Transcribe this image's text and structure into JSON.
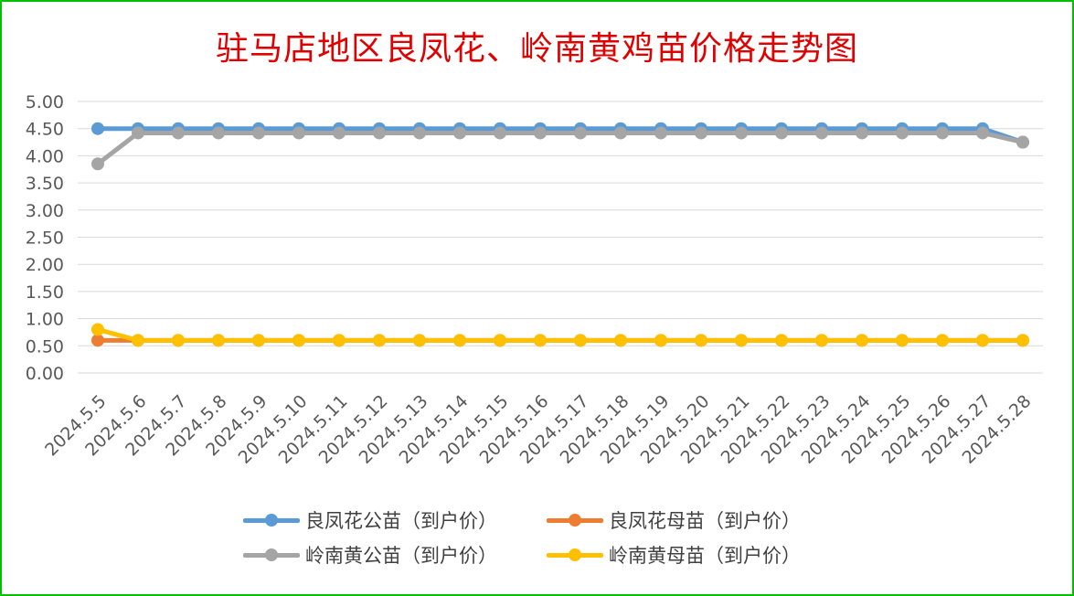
{
  "chart_data": {
    "type": "line",
    "title": "驻马店地区良凤花、岭南黄鸡苗价格走势图",
    "categories": [
      "2024.5.5",
      "2024.5.6",
      "2024.5.7",
      "2024.5.8",
      "2024.5.9",
      "2024.5.10",
      "2024.5.11",
      "2024.5.12",
      "2024.5.13",
      "2024.5.14",
      "2024.5.15",
      "2024.5.16",
      "2024.5.17",
      "2024.5.18",
      "2024.5.19",
      "2024.5.20",
      "2024.5.21",
      "2024.5.22",
      "2024.5.23",
      "2024.5.24",
      "2024.5.25",
      "2024.5.26",
      "2024.5.27",
      "2024.5.28"
    ],
    "ylim": [
      0,
      5
    ],
    "yticks": [
      "0.00",
      "0.50",
      "1.00",
      "1.50",
      "2.00",
      "2.50",
      "3.00",
      "3.50",
      "4.00",
      "4.50",
      "5.00"
    ],
    "grid": true,
    "legend_position": "bottom",
    "series": [
      {
        "name": "良凤花公苗（到户价）",
        "color": "#5b9bd5",
        "values": [
          4.5,
          4.5,
          4.5,
          4.5,
          4.5,
          4.5,
          4.5,
          4.5,
          4.5,
          4.5,
          4.5,
          4.5,
          4.5,
          4.5,
          4.5,
          4.5,
          4.5,
          4.5,
          4.5,
          4.5,
          4.5,
          4.5,
          4.5,
          4.25
        ]
      },
      {
        "name": "良凤花母苗（到户价）",
        "color": "#ed7d31",
        "values": [
          0.6,
          0.6,
          0.6,
          0.6,
          0.6,
          0.6,
          0.6,
          0.6,
          0.6,
          0.6,
          0.6,
          0.6,
          0.6,
          0.6,
          0.6,
          0.6,
          0.6,
          0.6,
          0.6,
          0.6,
          0.6,
          0.6,
          0.6,
          0.6
        ]
      },
      {
        "name": "岭南黄公苗（到户价）",
        "color": "#a5a5a5",
        "values": [
          3.85,
          4.42,
          4.42,
          4.42,
          4.42,
          4.42,
          4.42,
          4.42,
          4.42,
          4.42,
          4.42,
          4.42,
          4.42,
          4.42,
          4.42,
          4.42,
          4.42,
          4.42,
          4.42,
          4.42,
          4.42,
          4.42,
          4.42,
          4.25
        ]
      },
      {
        "name": "岭南黄母苗（到户价）",
        "color": "#ffc000",
        "values": [
          0.8,
          0.6,
          0.6,
          0.6,
          0.6,
          0.6,
          0.6,
          0.6,
          0.6,
          0.6,
          0.6,
          0.6,
          0.6,
          0.6,
          0.6,
          0.6,
          0.6,
          0.6,
          0.6,
          0.6,
          0.6,
          0.6,
          0.6,
          0.6
        ]
      }
    ]
  }
}
